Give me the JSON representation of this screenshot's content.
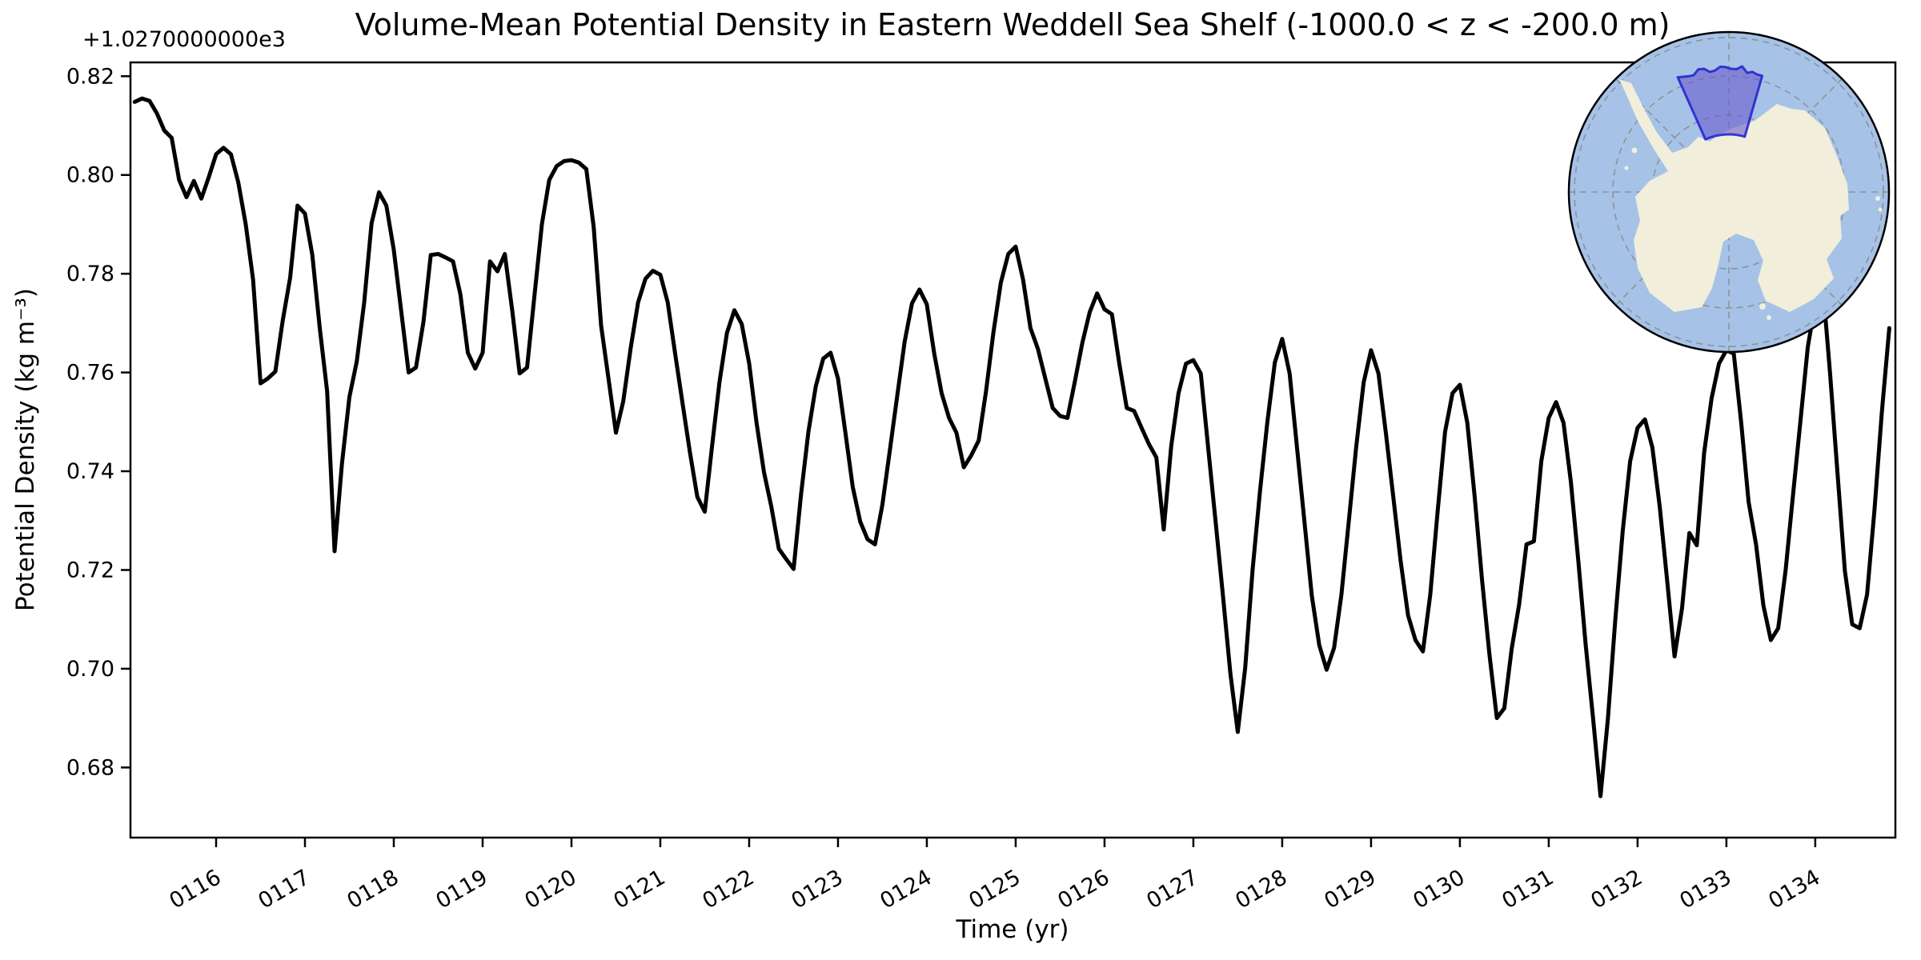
{
  "figure": {
    "title": "Volume-Mean Potential Density in Eastern Weddell Sea Shelf (-1000.0 < z < -200.0 m)",
    "offset_text": "+1.0270000000e3",
    "xlabel": "Time (yr)",
    "ylabel": "Potential Density (kg m⁻³)",
    "background": "#ffffff"
  },
  "chart_data": {
    "type": "line",
    "title": "Volume-Mean Potential Density in Eastern Weddell Sea Shelf (-1000.0 < z < -200.0 m)",
    "xlabel": "Time (yr)",
    "ylabel": "Potential Density (kg m⁻³)",
    "y_axis_offset": 1027.0,
    "offset_label": "+1.0270000000e3",
    "xlim": [
      115.036,
      134.902
    ],
    "ylim": [
      0.6658,
      0.8228
    ],
    "x_tick_values": [
      116,
      117,
      118,
      119,
      120,
      121,
      122,
      123,
      124,
      125,
      126,
      127,
      128,
      129,
      130,
      131,
      132,
      133,
      134
    ],
    "x_tick_labels": [
      "0116",
      "0117",
      "0118",
      "0119",
      "0120",
      "0121",
      "0122",
      "0123",
      "0124",
      "0125",
      "0126",
      "0127",
      "0128",
      "0129",
      "0130",
      "0131",
      "0132",
      "0133",
      "0134"
    ],
    "x_tick_rotation_deg": 30,
    "y_tick_values": [
      0.68,
      0.7,
      0.72,
      0.74,
      0.76,
      0.78,
      0.8,
      0.82
    ],
    "y_tick_labels": [
      "0.68",
      "0.70",
      "0.72",
      "0.74",
      "0.76",
      "0.78",
      "0.80",
      "0.82"
    ],
    "grid": false,
    "line_color": "#000000",
    "line_width": 5,
    "series": [
      {
        "name": "volume_mean_potential_density",
        "x_start": 115.083333,
        "x_step": 0.083333,
        "values": [
          0.8148,
          0.8155,
          0.815,
          0.8125,
          0.809,
          0.8075,
          0.799,
          0.7955,
          0.7988,
          0.7952,
          0.7995,
          0.8042,
          0.8055,
          0.8042,
          0.7985,
          0.79,
          0.7788,
          0.7578,
          0.7588,
          0.7602,
          0.7705,
          0.7792,
          0.7938,
          0.7922,
          0.7838,
          0.769,
          0.7562,
          0.7238,
          0.7415,
          0.755,
          0.7622,
          0.7742,
          0.7902,
          0.7965,
          0.7938,
          0.7848,
          0.7725,
          0.76,
          0.761,
          0.7702,
          0.7838,
          0.784,
          0.7833,
          0.7825,
          0.7758,
          0.764,
          0.7608,
          0.764,
          0.7825,
          0.7805,
          0.784,
          0.7725,
          0.7598,
          0.761,
          0.7755,
          0.79,
          0.799,
          0.8018,
          0.8028,
          0.803,
          0.8025,
          0.8012,
          0.7895,
          0.7695,
          0.7588,
          0.7478,
          0.7542,
          0.765,
          0.7742,
          0.779,
          0.7806,
          0.7798,
          0.7742,
          0.7638,
          0.7538,
          0.7438,
          0.7348,
          0.7318,
          0.7452,
          0.7582,
          0.768,
          0.7726,
          0.7698,
          0.7618,
          0.7498,
          0.7398,
          0.7328,
          0.7243,
          0.7222,
          0.7202,
          0.7352,
          0.748,
          0.7572,
          0.7628,
          0.764,
          0.7588,
          0.7478,
          0.7368,
          0.7298,
          0.7262,
          0.7252,
          0.7332,
          0.7442,
          0.7552,
          0.7662,
          0.774,
          0.7768,
          0.7738,
          0.7638,
          0.7558,
          0.7508,
          0.7478,
          0.7408,
          0.7432,
          0.7462,
          0.7562,
          0.7682,
          0.7782,
          0.784,
          0.7855,
          0.7788,
          0.769,
          0.7648,
          0.7588,
          0.7528,
          0.7512,
          0.7508,
          0.7582,
          0.766,
          0.7722,
          0.776,
          0.7728,
          0.7718,
          0.7618,
          0.7528,
          0.7522,
          0.7488,
          0.7455,
          0.7428,
          0.7282,
          0.745,
          0.7558,
          0.7618,
          0.7625,
          0.7598,
          0.7448,
          0.7298,
          0.7148,
          0.699,
          0.6872,
          0.7002,
          0.72,
          0.736,
          0.75,
          0.762,
          0.7668,
          0.7598,
          0.7448,
          0.7298,
          0.7148,
          0.7048,
          0.6998,
          0.7042,
          0.715,
          0.73,
          0.745,
          0.758,
          0.7645,
          0.7598,
          0.7478,
          0.7348,
          0.7218,
          0.7108,
          0.7058,
          0.7035,
          0.715,
          0.732,
          0.748,
          0.7558,
          0.7575,
          0.7498,
          0.7348,
          0.7178,
          0.7028,
          0.69,
          0.692,
          0.704,
          0.713,
          0.7252,
          0.7258,
          0.742,
          0.7508,
          0.754,
          0.7498,
          0.7378,
          0.7218,
          0.7048,
          0.6898,
          0.6742,
          0.69,
          0.71,
          0.728,
          0.742,
          0.7488,
          0.7505,
          0.7448,
          0.7328,
          0.7178,
          0.7025,
          0.7122,
          0.7275,
          0.725,
          0.7438,
          0.7548,
          0.7618,
          0.7645,
          0.7638,
          0.7498,
          0.7338,
          0.7252,
          0.7128,
          0.7058,
          0.7082,
          0.72,
          0.7352,
          0.7502,
          0.7652,
          0.774,
          0.778,
          0.7598,
          0.7398,
          0.7198,
          0.709,
          0.7082,
          0.715,
          0.7322,
          0.752,
          0.769
        ]
      }
    ],
    "legend": null,
    "inset": "south-polar map with highlighted Eastern Weddell Sea Shelf region, top right"
  },
  "inset_map": {
    "description": "South polar stereographic map of Antarctica",
    "region_label": "Eastern Weddell Sea Shelf",
    "colors": {
      "ocean": "#a6c2e7",
      "land": "#f1efdb",
      "graticule": "#8a8a8a",
      "region_fill": "#6a5acd",
      "region_stroke": "#2727cf",
      "outline": "#000000"
    }
  }
}
